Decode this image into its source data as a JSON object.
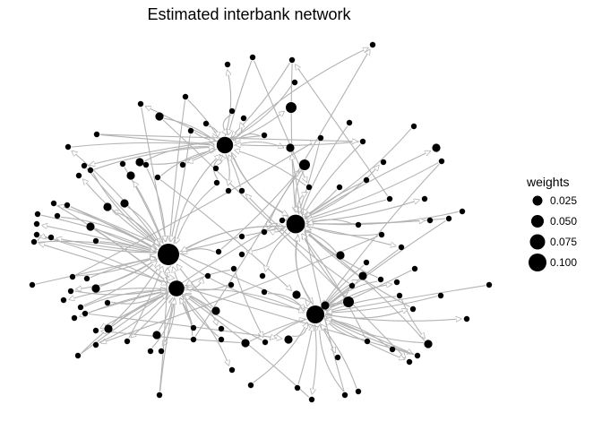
{
  "title": "Estimated interbank network",
  "legend": {
    "title": "weights",
    "items": [
      {
        "label": "0.025",
        "weight": 0.025
      },
      {
        "label": "0.050",
        "weight": 0.05
      },
      {
        "label": "0.075",
        "weight": 0.075
      },
      {
        "label": "0.100",
        "weight": 0.1
      }
    ]
  },
  "colors": {
    "node": "#000000",
    "edge": "#b3b3b3",
    "background": "#ffffff"
  },
  "hubs": [
    {
      "id": "hub-A",
      "weight": 0.1
    },
    {
      "id": "hub-B",
      "weight": 0.08
    },
    {
      "id": "hub-C",
      "weight": 0.075
    },
    {
      "id": "hub-D",
      "weight": 0.065
    },
    {
      "id": "hub-E",
      "weight": 0.06
    }
  ]
}
